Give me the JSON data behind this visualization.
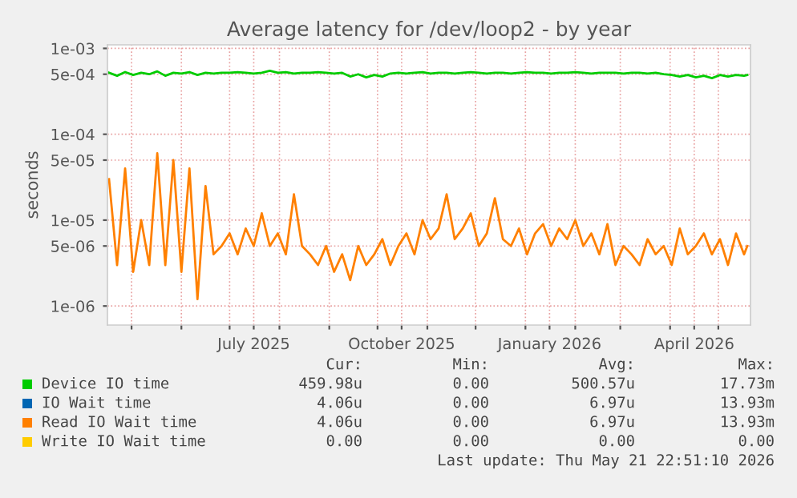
{
  "chart_data": {
    "type": "line",
    "title": "Average latency for /dev/loop2 - by year",
    "ylabel": "seconds",
    "x": [
      "2025-04-17",
      "2025-04-22",
      "2025-04-27",
      "2025-05-02",
      "2025-05-07",
      "2025-05-12",
      "2025-05-17",
      "2025-05-22",
      "2025-05-27",
      "2025-06-01",
      "2025-06-06",
      "2025-06-11",
      "2025-06-16",
      "2025-06-21",
      "2025-06-26",
      "2025-07-01",
      "2025-07-06",
      "2025-07-11",
      "2025-07-16",
      "2025-07-21",
      "2025-07-26",
      "2025-07-31",
      "2025-08-05",
      "2025-08-10",
      "2025-08-15",
      "2025-08-20",
      "2025-08-25",
      "2025-08-30",
      "2025-09-04",
      "2025-09-09",
      "2025-09-14",
      "2025-09-19",
      "2025-09-24",
      "2025-09-29",
      "2025-10-04",
      "2025-10-09",
      "2025-10-14",
      "2025-10-19",
      "2025-10-24",
      "2025-10-29",
      "2025-11-03",
      "2025-11-08",
      "2025-11-13",
      "2025-11-18",
      "2025-11-23",
      "2025-11-28",
      "2025-12-03",
      "2025-12-08",
      "2025-12-13",
      "2025-12-18",
      "2025-12-23",
      "2025-12-28",
      "2026-01-02",
      "2026-01-07",
      "2026-01-12",
      "2026-01-17",
      "2026-01-22",
      "2026-01-27",
      "2026-02-01",
      "2026-02-06",
      "2026-02-11",
      "2026-02-16",
      "2026-02-21",
      "2026-02-26",
      "2026-03-03",
      "2026-03-08",
      "2026-03-13",
      "2026-03-18",
      "2026-03-23",
      "2026-03-28",
      "2026-04-02",
      "2026-04-07",
      "2026-04-12",
      "2026-04-17",
      "2026-04-22",
      "2026-04-27",
      "2026-05-02",
      "2026-05-07",
      "2026-05-12",
      "2026-05-17",
      "2026-05-19"
    ],
    "series": [
      {
        "name": "Device IO time",
        "color": "#00cc00",
        "values": [
          0.00052,
          0.00048,
          0.00053,
          0.00049,
          0.00052,
          0.0005,
          0.00054,
          0.00048,
          0.00052,
          0.00051,
          0.00053,
          0.00049,
          0.00052,
          0.00051,
          0.00052,
          0.00052,
          0.00053,
          0.00052,
          0.00051,
          0.00052,
          0.00055,
          0.00052,
          0.00053,
          0.00051,
          0.00052,
          0.00052,
          0.00053,
          0.00052,
          0.00051,
          0.00052,
          0.00047,
          0.0005,
          0.00046,
          0.00049,
          0.00047,
          0.00051,
          0.00052,
          0.00051,
          0.00052,
          0.00053,
          0.00051,
          0.00052,
          0.00052,
          0.00051,
          0.00052,
          0.00053,
          0.00052,
          0.00051,
          0.00052,
          0.00052,
          0.00051,
          0.00052,
          0.00053,
          0.00052,
          0.00052,
          0.00051,
          0.00052,
          0.00052,
          0.00053,
          0.00052,
          0.00051,
          0.00052,
          0.00052,
          0.00052,
          0.00051,
          0.00052,
          0.00052,
          0.00051,
          0.00052,
          0.0005,
          0.00049,
          0.00047,
          0.00049,
          0.00046,
          0.00048,
          0.00045,
          0.00049,
          0.00047,
          0.00049,
          0.00048,
          0.00049
        ]
      },
      {
        "name": "IO Wait time",
        "color": "#0066b3",
        "values": [
          null,
          null,
          null,
          null,
          null,
          null,
          null,
          null,
          null,
          null,
          null,
          null,
          null,
          null,
          null,
          null,
          null,
          null,
          null,
          null,
          null,
          null,
          null,
          null,
          null,
          null,
          null,
          null,
          null,
          null,
          null,
          null,
          null,
          null,
          null,
          null,
          null,
          null,
          null,
          null,
          null,
          null,
          null,
          null,
          null,
          null,
          null,
          null,
          null,
          null,
          null,
          null,
          null,
          null,
          null,
          null,
          null,
          null,
          null,
          null,
          null,
          null,
          null,
          null,
          null,
          null,
          null,
          null,
          null,
          null,
          null,
          null,
          null,
          null,
          null,
          null,
          null,
          null,
          null,
          null,
          null
        ]
      },
      {
        "name": "Read IO Wait time",
        "color": "#ff8000",
        "values": [
          3e-05,
          3e-06,
          4e-05,
          2.5e-06,
          1e-05,
          3e-06,
          6e-05,
          3e-06,
          5e-05,
          2.5e-06,
          4e-05,
          1.2e-06,
          2.5e-05,
          4e-06,
          5e-06,
          7e-06,
          4e-06,
          8e-06,
          5e-06,
          1.2e-05,
          5e-06,
          7e-06,
          4e-06,
          2e-05,
          5e-06,
          4e-06,
          3e-06,
          5e-06,
          2.5e-06,
          4e-06,
          2e-06,
          5e-06,
          3e-06,
          4e-06,
          6e-06,
          3e-06,
          5e-06,
          7e-06,
          4e-06,
          1e-05,
          6e-06,
          8e-06,
          2e-05,
          6e-06,
          8e-06,
          1.2e-05,
          5e-06,
          7e-06,
          1.8e-05,
          6e-06,
          5e-06,
          8e-06,
          4e-06,
          7e-06,
          9e-06,
          5e-06,
          8e-06,
          6e-06,
          1e-05,
          5e-06,
          7e-06,
          4e-06,
          9e-06,
          3e-06,
          5e-06,
          4e-06,
          3e-06,
          6e-06,
          4e-06,
          5e-06,
          3e-06,
          8e-06,
          4e-06,
          5e-06,
          7e-06,
          4e-06,
          6e-06,
          3e-06,
          7e-06,
          4e-06,
          5e-06
        ]
      },
      {
        "name": "Write IO Wait time",
        "color": "#ffcc00",
        "values": [
          null,
          null,
          null,
          null,
          null,
          null,
          null,
          null,
          null,
          null,
          null,
          null,
          null,
          null,
          null,
          null,
          null,
          null,
          null,
          null,
          null,
          null,
          null,
          null,
          null,
          null,
          null,
          null,
          null,
          null,
          null,
          null,
          null,
          null,
          null,
          null,
          null,
          null,
          null,
          null,
          null,
          null,
          null,
          null,
          null,
          null,
          null,
          null,
          null,
          null,
          null,
          null,
          null,
          null,
          null,
          null,
          null,
          null,
          null,
          null,
          null,
          null,
          null,
          null,
          null,
          null,
          null,
          null,
          null,
          null,
          null,
          null,
          null,
          null,
          null,
          null,
          null,
          null,
          null,
          null,
          null
        ]
      }
    ],
    "log": "y",
    "ylim": [
      6e-07,
      0.0011
    ],
    "yticks": [
      {
        "value": 1e-06,
        "label": "1e-06"
      },
      {
        "value": 5e-06,
        "label": "5e-06"
      },
      {
        "value": 1e-05,
        "label": "1e-05"
      },
      {
        "value": 5e-05,
        "label": "5e-05"
      },
      {
        "value": 0.0001,
        "label": "1e-04"
      },
      {
        "value": 0.0005,
        "label": "5e-04"
      },
      {
        "value": 0.001,
        "label": "1e-03"
      }
    ],
    "xlim": [
      "2025-04-16",
      "2026-05-21"
    ],
    "xticks": [
      {
        "value": "2025-05-01",
        "label": null
      },
      {
        "value": "2025-06-01",
        "label": null
      },
      {
        "value": "2025-07-01",
        "label": null
      },
      {
        "value": "2025-07-16",
        "label": "July 2025"
      },
      {
        "value": "2025-08-01",
        "label": null
      },
      {
        "value": "2025-09-01",
        "label": null
      },
      {
        "value": "2025-10-01",
        "label": null
      },
      {
        "value": "2025-10-16",
        "label": "October 2025"
      },
      {
        "value": "2025-11-01",
        "label": null
      },
      {
        "value": "2025-12-01",
        "label": null
      },
      {
        "value": "2026-01-01",
        "label": null
      },
      {
        "value": "2026-01-16",
        "label": "January 2026"
      },
      {
        "value": "2026-02-01",
        "label": null
      },
      {
        "value": "2026-03-01",
        "label": null
      },
      {
        "value": "2026-04-01",
        "label": null
      },
      {
        "value": "2026-04-16",
        "label": "April 2026"
      },
      {
        "value": "2026-05-01",
        "label": null
      }
    ],
    "grid": true,
    "legend": "bottom",
    "annotations": [
      "Cur:",
      "Min:",
      "Avg:",
      "Max:",
      "459.98u",
      "0.00",
      "500.57u",
      "17.73m",
      "4.06u",
      "0.00",
      "6.97u",
      "13.93m",
      "4.06u",
      "0.00",
      "6.97u",
      "13.93m",
      "0.00",
      "0.00",
      "0.00",
      "0.00",
      "Last update: Thu May 21 22:51:10 2026"
    ]
  }
}
